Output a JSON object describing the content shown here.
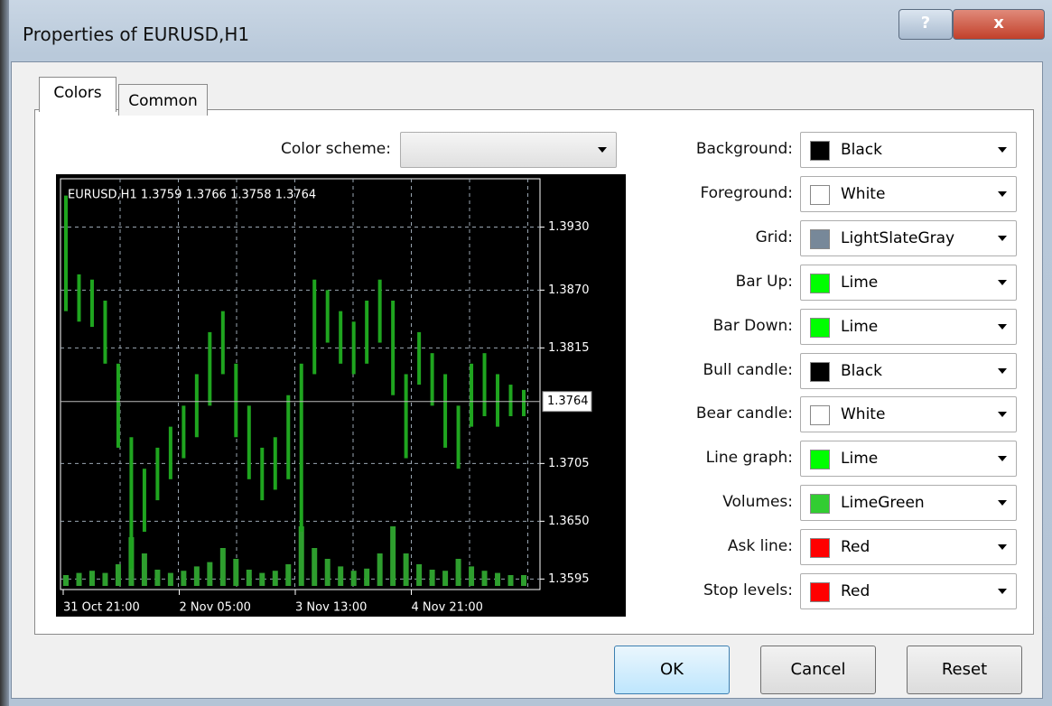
{
  "window": {
    "title": "Properties of EURUSD,H1",
    "help": "?",
    "close": "x"
  },
  "tabs": [
    "Colors",
    "Common"
  ],
  "color_scheme": {
    "label": "Color scheme:"
  },
  "chart_data": {
    "type": "bar",
    "title": "EURUSD,H1  1.3759 1.3766 1.3758 1.3764",
    "high": [
      1.396,
      1.3885,
      1.388,
      1.386,
      1.38,
      1.373,
      1.37,
      1.372,
      1.374,
      1.376,
      1.379,
      1.383,
      1.385,
      1.38,
      1.376,
      1.372,
      1.373,
      1.377,
      1.38,
      1.388,
      1.387,
      1.385,
      1.384,
      1.386,
      1.388,
      1.386,
      1.379,
      1.383,
      1.381,
      1.379,
      1.376,
      1.38,
      1.381,
      1.379,
      1.378,
      1.3775
    ],
    "low": [
      1.385,
      1.384,
      1.3835,
      1.38,
      1.372,
      1.3605,
      1.364,
      1.367,
      1.369,
      1.371,
      1.373,
      1.376,
      1.379,
      1.373,
      1.369,
      1.367,
      1.368,
      1.369,
      1.364,
      1.379,
      1.382,
      1.38,
      1.379,
      1.38,
      1.382,
      1.377,
      1.371,
      1.378,
      1.376,
      1.372,
      1.37,
      1.374,
      1.375,
      1.374,
      1.375,
      1.375
    ],
    "volumes": [
      10,
      12,
      14,
      12,
      20,
      45,
      30,
      15,
      12,
      14,
      18,
      22,
      35,
      25,
      15,
      12,
      14,
      20,
      55,
      35,
      25,
      18,
      14,
      16,
      30,
      55,
      30,
      20,
      15,
      14,
      25,
      18,
      14,
      12,
      10,
      10
    ],
    "vlim": [
      0,
      100
    ],
    "x_labels": [
      "31 Oct 21:00",
      "2 Nov 05:00",
      "3 Nov 13:00",
      "4 Nov 21:00"
    ],
    "ylim": [
      1.3585,
      1.3976
    ],
    "yticks": [
      {
        "value": 1.393,
        "label": "1.3930"
      },
      {
        "value": 1.387,
        "label": "1.3870"
      },
      1.3815,
      1.3705,
      {
        "value": 1.365,
        "label": "1.3650"
      },
      1.3595
    ],
    "last_price": 1.3764,
    "color": "#1fa51f",
    "volume_color": "#2e9e2e",
    "background": "#000000",
    "foreground": "#ffffff",
    "grid_color": "#9aa6b2",
    "grid": true
  },
  "color_rows": [
    {
      "label": "Background:",
      "color": "#000000",
      "value": "Black"
    },
    {
      "label": "Foreground:",
      "color": "#ffffff",
      "value": "White"
    },
    {
      "label": "Grid:",
      "color": "#778899",
      "value": "LightSlateGray"
    },
    {
      "label": "Bar Up:",
      "color": "#00ff00",
      "value": "Lime"
    },
    {
      "label": "Bar Down:",
      "color": "#00ff00",
      "value": "Lime"
    },
    {
      "label": "Bull candle:",
      "color": "#000000",
      "value": "Black"
    },
    {
      "label": "Bear candle:",
      "color": "#ffffff",
      "value": "White"
    },
    {
      "label": "Line graph:",
      "color": "#00ff00",
      "value": "Lime"
    },
    {
      "label": "Volumes:",
      "color": "#32cd32",
      "value": "LimeGreen"
    },
    {
      "label": "Ask line:",
      "color": "#ff0000",
      "value": "Red"
    },
    {
      "label": "Stop levels:",
      "color": "#ff0000",
      "value": "Red"
    }
  ],
  "buttons": [
    "OK",
    "Cancel",
    "Reset"
  ]
}
